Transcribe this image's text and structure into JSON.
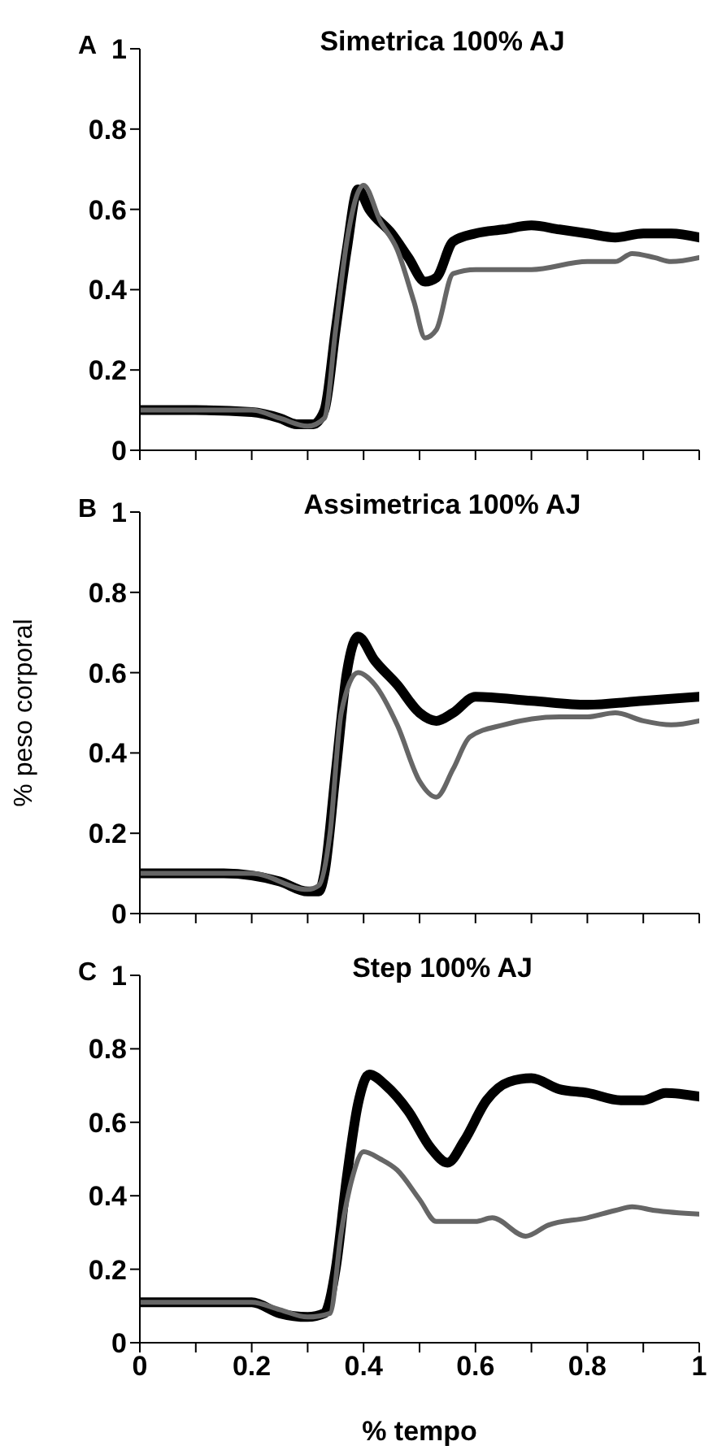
{
  "chart_data": [
    {
      "type": "line",
      "title": "Simetrica 100% AJ",
      "annotations": [
        "A"
      ],
      "xlim": [
        0,
        1
      ],
      "xticks": [
        0,
        {
          "value": 0.1,
          "label": null
        },
        0.2,
        {
          "value": 0.3,
          "label": null
        },
        0.4,
        {
          "value": 0.5,
          "label": null
        },
        0.6,
        {
          "value": 0.7,
          "label": null
        },
        0.8,
        {
          "value": 0.9,
          "label": null
        },
        1
      ],
      "ylim": [
        0,
        1
      ],
      "yticks": [
        0,
        0.2,
        0.4,
        0.6,
        0.8,
        1
      ],
      "tick_labels": "y",
      "grid": false,
      "legend": false,
      "marker": "none",
      "line_style": "solid",
      "series": [
        {
          "color": "#000000",
          "x": [
            0,
            0.1,
            0.2,
            0.25,
            0.28,
            0.31,
            0.33,
            0.35,
            0.37,
            0.39,
            0.41,
            0.45,
            0.48,
            0.51,
            0.53,
            0.56,
            0.6,
            0.65,
            0.7,
            0.75,
            0.8,
            0.85,
            0.9,
            0.95,
            1
          ],
          "values": [
            0.1,
            0.1,
            0.095,
            0.08,
            0.065,
            0.065,
            0.1,
            0.3,
            0.5,
            0.65,
            0.6,
            0.54,
            0.48,
            0.42,
            0.43,
            0.52,
            0.54,
            0.55,
            0.56,
            0.55,
            0.54,
            0.53,
            0.54,
            0.54,
            0.53
          ]
        },
        {
          "color": "#666666",
          "x": [
            0,
            0.2,
            0.25,
            0.3,
            0.33,
            0.35,
            0.37,
            0.4,
            0.43,
            0.46,
            0.49,
            0.51,
            0.53,
            0.56,
            0.6,
            0.7,
            0.8,
            0.85,
            0.88,
            0.92,
            0.95,
            1
          ],
          "values": [
            0.1,
            0.1,
            0.08,
            0.06,
            0.08,
            0.3,
            0.52,
            0.66,
            0.57,
            0.5,
            0.37,
            0.28,
            0.3,
            0.44,
            0.45,
            0.45,
            0.47,
            0.47,
            0.49,
            0.48,
            0.47,
            0.48
          ]
        }
      ]
    },
    {
      "type": "line",
      "title": "Assimetrica 100% AJ",
      "ylabel": "% peso corporal",
      "annotations": [
        "B"
      ],
      "xlim": [
        0,
        1
      ],
      "xticks": [
        0,
        {
          "value": 0.1,
          "label": null
        },
        0.2,
        {
          "value": 0.3,
          "label": null
        },
        0.4,
        {
          "value": 0.5,
          "label": null
        },
        0.6,
        {
          "value": 0.7,
          "label": null
        },
        0.8,
        {
          "value": 0.9,
          "label": null
        },
        1
      ],
      "ylim": [
        0,
        1
      ],
      "yticks": [
        0,
        0.2,
        0.4,
        0.6,
        0.8,
        1
      ],
      "tick_labels": "y",
      "grid": false,
      "legend": false,
      "marker": "none",
      "line_style": "solid",
      "series": [
        {
          "color": "#000000",
          "x": [
            0,
            0.15,
            0.2,
            0.25,
            0.3,
            0.32,
            0.33,
            0.35,
            0.37,
            0.39,
            0.42,
            0.46,
            0.5,
            0.53,
            0.56,
            0.6,
            0.7,
            0.8,
            0.9,
            1
          ],
          "values": [
            0.1,
            0.1,
            0.095,
            0.08,
            0.055,
            0.055,
            0.1,
            0.35,
            0.6,
            0.69,
            0.63,
            0.57,
            0.5,
            0.48,
            0.5,
            0.54,
            0.53,
            0.52,
            0.53,
            0.54
          ]
        },
        {
          "color": "#666666",
          "x": [
            0,
            0.2,
            0.3,
            0.32,
            0.34,
            0.36,
            0.39,
            0.42,
            0.46,
            0.5,
            0.53,
            0.56,
            0.59,
            0.65,
            0.75,
            0.8,
            0.85,
            0.9,
            0.95,
            1
          ],
          "values": [
            0.1,
            0.1,
            0.06,
            0.07,
            0.2,
            0.5,
            0.6,
            0.57,
            0.47,
            0.33,
            0.29,
            0.36,
            0.44,
            0.47,
            0.49,
            0.49,
            0.5,
            0.48,
            0.47,
            0.48
          ]
        }
      ]
    },
    {
      "type": "line",
      "title": "Step 100% AJ",
      "xlabel": "% tempo",
      "annotations": [
        "C"
      ],
      "xlim": [
        0,
        1
      ],
      "xticks": [
        0,
        {
          "value": 0.1,
          "label": null
        },
        0.2,
        {
          "value": 0.3,
          "label": null
        },
        0.4,
        {
          "value": 0.5,
          "label": null
        },
        0.6,
        {
          "value": 0.7,
          "label": null
        },
        0.8,
        {
          "value": 0.9,
          "label": null
        },
        1
      ],
      "ylim": [
        0,
        1
      ],
      "yticks": [
        0,
        0.2,
        0.4,
        0.6,
        0.8,
        1
      ],
      "grid": false,
      "legend": false,
      "marker": "none",
      "line_style": "solid",
      "series": [
        {
          "color": "#000000",
          "x": [
            0,
            0.1,
            0.2,
            0.25,
            0.3,
            0.33,
            0.35,
            0.37,
            0.39,
            0.41,
            0.44,
            0.48,
            0.52,
            0.55,
            0.58,
            0.62,
            0.66,
            0.7,
            0.75,
            0.8,
            0.86,
            0.9,
            0.94,
            1
          ],
          "values": [
            0.11,
            0.11,
            0.11,
            0.08,
            0.07,
            0.08,
            0.2,
            0.45,
            0.65,
            0.73,
            0.7,
            0.63,
            0.53,
            0.49,
            0.55,
            0.66,
            0.71,
            0.72,
            0.69,
            0.68,
            0.66,
            0.66,
            0.68,
            0.67
          ]
        },
        {
          "color": "#666666",
          "x": [
            0,
            0.2,
            0.25,
            0.3,
            0.34,
            0.36,
            0.38,
            0.4,
            0.43,
            0.46,
            0.5,
            0.53,
            0.6,
            0.63,
            0.69,
            0.73,
            0.8,
            0.85,
            0.88,
            0.92,
            1
          ],
          "values": [
            0.11,
            0.11,
            0.09,
            0.07,
            0.08,
            0.3,
            0.45,
            0.52,
            0.5,
            0.47,
            0.39,
            0.33,
            0.33,
            0.34,
            0.29,
            0.32,
            0.34,
            0.36,
            0.37,
            0.36,
            0.35
          ]
        }
      ]
    }
  ]
}
